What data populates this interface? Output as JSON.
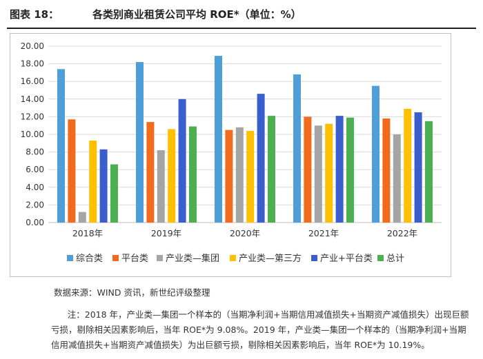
{
  "header": {
    "figure_label": "图表 18：",
    "title": "各类别商业租赁公司平均 ROE*（单位：%）"
  },
  "chart_data": {
    "type": "bar",
    "title": "各类别商业租赁公司平均 ROE*（单位：%）",
    "categories": [
      "2018年",
      "2019年",
      "2020年",
      "2021年",
      "2022年"
    ],
    "ylim": [
      0,
      20
    ],
    "yticks": [
      "0.00",
      "2.00",
      "4.00",
      "6.00",
      "8.00",
      "10.00",
      "12.00",
      "14.00",
      "16.00",
      "18.00",
      "20.00"
    ],
    "grid": true,
    "legend_position": "bottom",
    "series": [
      {
        "name": "综合类",
        "color": "#4e9fd8",
        "values": [
          17.4,
          18.2,
          18.9,
          16.8,
          15.5
        ]
      },
      {
        "name": "平台类",
        "color": "#f26b1d",
        "values": [
          11.7,
          11.4,
          10.5,
          12.0,
          11.8
        ]
      },
      {
        "name": "产业类—集团",
        "color": "#a5a5a5",
        "values": [
          1.2,
          8.2,
          10.8,
          11.0,
          10.0
        ]
      },
      {
        "name": "产业类—第三方",
        "color": "#ffc000",
        "values": [
          9.3,
          10.6,
          10.4,
          11.2,
          12.9
        ]
      },
      {
        "name": "产业+平台类",
        "color": "#3a5fcd",
        "values": [
          8.3,
          14.0,
          14.6,
          12.1,
          12.5
        ]
      },
      {
        "name": "总计",
        "color": "#4caf50",
        "values": [
          6.6,
          10.9,
          12.1,
          11.9,
          11.5
        ]
      }
    ]
  },
  "footer": {
    "source": "数据来源：WIND 资讯，新世纪评级整理",
    "note": "注：2018 年，产业类—集团一个样本的（当期净利润+当期信用减值损失+当期资产减值损失）出现巨额亏损，剔除相关因素影响后，当年 ROE*为 9.08%。2019 年，产业类—集团一个样本的（当期净利润+当期信用减值损失+当期资产减值损失）为出巨额亏损，剔除相关因素影响后，当年 ROE*为 10.19%。"
  }
}
